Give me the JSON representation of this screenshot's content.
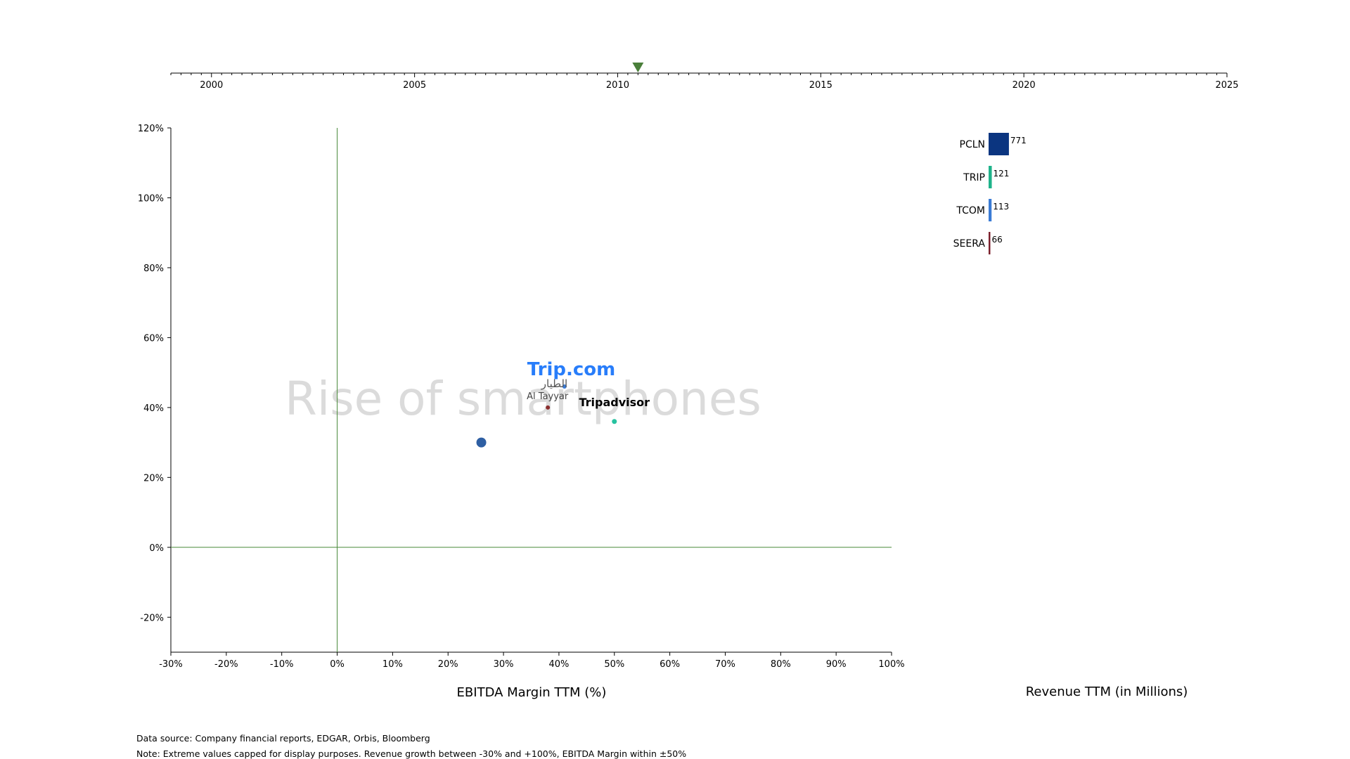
{
  "timeline": {
    "min_year": 1999,
    "max_year": 2025,
    "major_ticks": [
      2000,
      2005,
      2010,
      2015,
      2020,
      2025
    ],
    "current_year": 2010.5,
    "marker_color": "#4a7f3a"
  },
  "chart_data": [
    {
      "type": "scatter",
      "xlabel": "EBITDA Margin TTM (%)",
      "xlim": [
        -30,
        100
      ],
      "ylim": [
        -30,
        120
      ],
      "xticks": [
        "-30%",
        "-20%",
        "-10%",
        "0%",
        "10%",
        "20%",
        "30%",
        "40%",
        "50%",
        "60%",
        "70%",
        "80%",
        "90%",
        "100%"
      ],
      "yticks": [
        "-20%",
        "0%",
        "20%",
        "40%",
        "60%",
        "80%",
        "100%",
        "120%"
      ],
      "xtick_values": [
        -30,
        -20,
        -10,
        0,
        10,
        20,
        30,
        40,
        50,
        60,
        70,
        80,
        90,
        100
      ],
      "ytick_values": [
        -20,
        0,
        20,
        40,
        60,
        80,
        100,
        120
      ],
      "reference_lines": {
        "x": 0,
        "y": 0,
        "color": "#4a8a3a"
      },
      "annotation": "Rise of smartphones",
      "points": [
        {
          "name": "PCLN",
          "x": 26,
          "y": 30,
          "color": "#2e5fa3",
          "size": 7,
          "logo": ""
        },
        {
          "name": "TCOM",
          "x": 41,
          "y": 46,
          "color": "#3a7bd5",
          "size": 3,
          "logo": "Trip.com"
        },
        {
          "name": "SEERA",
          "x": 38,
          "y": 40,
          "color": "#8b2f2f",
          "size": 3,
          "logo": "Al Tayyar",
          "logo_arabic": "الطيار"
        },
        {
          "name": "TRIP",
          "x": 50,
          "y": 36,
          "color": "#27c2a0",
          "size": 3.5,
          "logo": "Tripadvisor"
        }
      ]
    },
    {
      "type": "bar",
      "orientation": "horizontal",
      "xlabel": "Revenue TTM (in Millions)",
      "categories": [
        "PCLN",
        "TRIP",
        "TCOM",
        "SEERA"
      ],
      "values": [
        771,
        121,
        113,
        66
      ],
      "colors": [
        "#0b3580",
        "#1eb38a",
        "#3a7bd5",
        "#7a1f2b"
      ]
    }
  ],
  "footnotes": {
    "source": "Data source: Company financial reports, EDGAR, Orbis, Bloomberg",
    "note": "Note: Extreme values capped for display purposes. Revenue growth between -30% and +100%, EBITDA Margin within ±50%"
  }
}
